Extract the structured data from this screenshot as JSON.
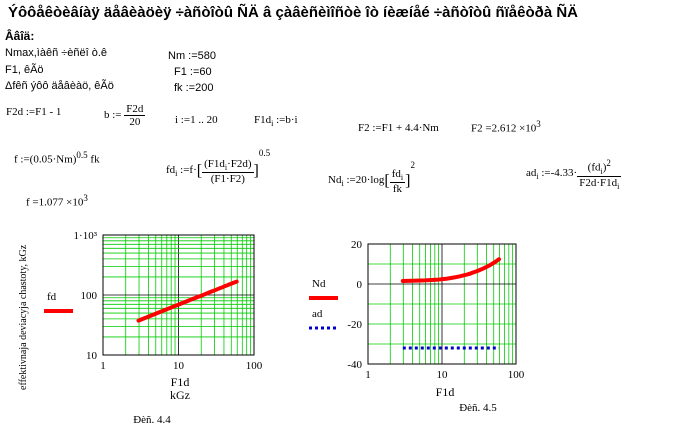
{
  "title": "Ýôôåêòèâíàÿ äåâèàöèÿ ÷àñòîòû ÑÄ â çàâèñèìîñòè îò íèæíåé ÷àñòîòû ñïåêòðà ÑÄ",
  "given": {
    "heading": "Ââîä:",
    "lines": [
      "Nmax,ìàêñ ÷èñëî ò.ê",
      "F1, êÃö",
      "Δfêñ ýôô äåâèàö, êÃö"
    ],
    "values": [
      "Nm :=580",
      "F1 :=60",
      "fk :=200"
    ]
  },
  "formulas": {
    "f2d": "F2d :=F1 - 1",
    "b_lhs": "b :=",
    "b_num": "F2d",
    "b_den": "20",
    "i_range": "i :=1 .. 20",
    "f1d_lhs": "F1d",
    "f1d_sub": "i",
    "f1d_rhs": " :=b·i",
    "f2_def": "F2 :=F1 + 4.4·Nm",
    "f2_val_base": "F2 =2.612 ×10",
    "f2_val_exp": "3",
    "f_def": "f :=(0.05·Nm)",
    "f_def_exp": "0.5",
    "f_def_tail": " fk",
    "fd_lhs": "fd",
    "fd_sub": "i",
    "fd_mid": " :=f·",
    "fd_num": "(F1d",
    "fd_num_sub": "i",
    "fd_num_tail": "·F2d)",
    "fd_den": "(F1·F2)",
    "fd_exp": "0.5",
    "nd_lhs": "Nd",
    "nd_sub": "i",
    "nd_mid": " :=20·log",
    "nd_num": "fd",
    "nd_num_sub": "i",
    "nd_den": "fk",
    "nd_exp": "2",
    "ad_lhs": "ad",
    "ad_sub": "i",
    "ad_mid": " :=-4.33·",
    "ad_num": "(fd",
    "ad_num_sub": "i",
    "ad_num_tail": ")",
    "ad_num_exp": "2",
    "ad_den": "F2d·F1d",
    "ad_den_sub": "i",
    "f_val_base": "f =1.077 ×10",
    "f_val_exp": "3"
  },
  "chart_data": [
    {
      "type": "line",
      "caption": "Ðèñ. 4.4",
      "ylabel": "effektivnaja deviacyja chastoty, kGz",
      "xlabel": "F1d",
      "xunit": "kGz",
      "xscale": "log",
      "yscale": "log",
      "xlim": [
        1,
        100
      ],
      "ylim": [
        10,
        1000
      ],
      "xticks": [
        "1",
        "10",
        "100"
      ],
      "yticks": [
        "1·10³",
        "100",
        "10"
      ],
      "ytick_values": [
        1000,
        100,
        10
      ],
      "grid": true,
      "legend_position": "left",
      "series": [
        {
          "name": "fd",
          "color": "#ff0000",
          "style": "solid",
          "x": [
            2.95,
            5.9,
            8.85,
            11.8,
            14.75,
            17.7,
            20.65,
            23.6,
            26.55,
            29.5,
            32.45,
            35.4,
            38.35,
            41.3,
            44.25,
            47.2,
            50.15,
            53.1,
            56.05,
            59
          ],
          "y": [
            37.5,
            53,
            65,
            75,
            84,
            92,
            99,
            106,
            112.5,
            118.5,
            124.5,
            130,
            135,
            140.5,
            145,
            150,
            154.5,
            159,
            163.5,
            167.5
          ]
        }
      ]
    },
    {
      "type": "line",
      "caption": "Ðèñ. 4.5",
      "xlabel": "F1d",
      "xscale": "log",
      "xlim": [
        1,
        100
      ],
      "ylim": [
        -40,
        20
      ],
      "xticks": [
        "1",
        "10",
        "100"
      ],
      "yticks": [
        "20",
        "0",
        "-20",
        "-40"
      ],
      "ytick_values": [
        20,
        0,
        -20,
        -40
      ],
      "grid": true,
      "legend_position": "left",
      "series": [
        {
          "name": "Nd",
          "color": "#ff0000",
          "style": "solid",
          "x": [
            2.95,
            5.9,
            8.85,
            11.8,
            14.75,
            17.7,
            20.65,
            23.6,
            26.55,
            29.5,
            32.45,
            35.4,
            38.35,
            41.3,
            44.25,
            47.2,
            50.15,
            53.1,
            56.05,
            59
          ],
          "y": [
            1.5,
            1.8,
            2.2,
            2.7,
            3.3,
            3.9,
            4.5,
            5.1,
            5.8,
            6.4,
            7.0,
            7.6,
            8.2,
            8.8,
            9.4,
            10.0,
            10.6,
            11.2,
            11.8,
            12.4
          ]
        },
        {
          "name": "ad",
          "color": "#0000cc",
          "style": "dotted",
          "x": [
            2.95,
            5.9,
            8.85,
            11.8,
            14.75,
            17.7,
            20.65,
            23.6,
            26.55,
            29.5,
            32.45,
            35.4,
            38.35,
            41.3,
            44.25,
            47.2,
            50.15,
            53.1,
            56.05,
            59
          ],
          "y": [
            -32,
            -32,
            -32,
            -32,
            -32,
            -32,
            -32,
            -32,
            -32,
            -32,
            -32,
            -32,
            -32,
            -32,
            -32,
            -32,
            -32,
            -32,
            -32,
            -32
          ]
        }
      ]
    }
  ]
}
